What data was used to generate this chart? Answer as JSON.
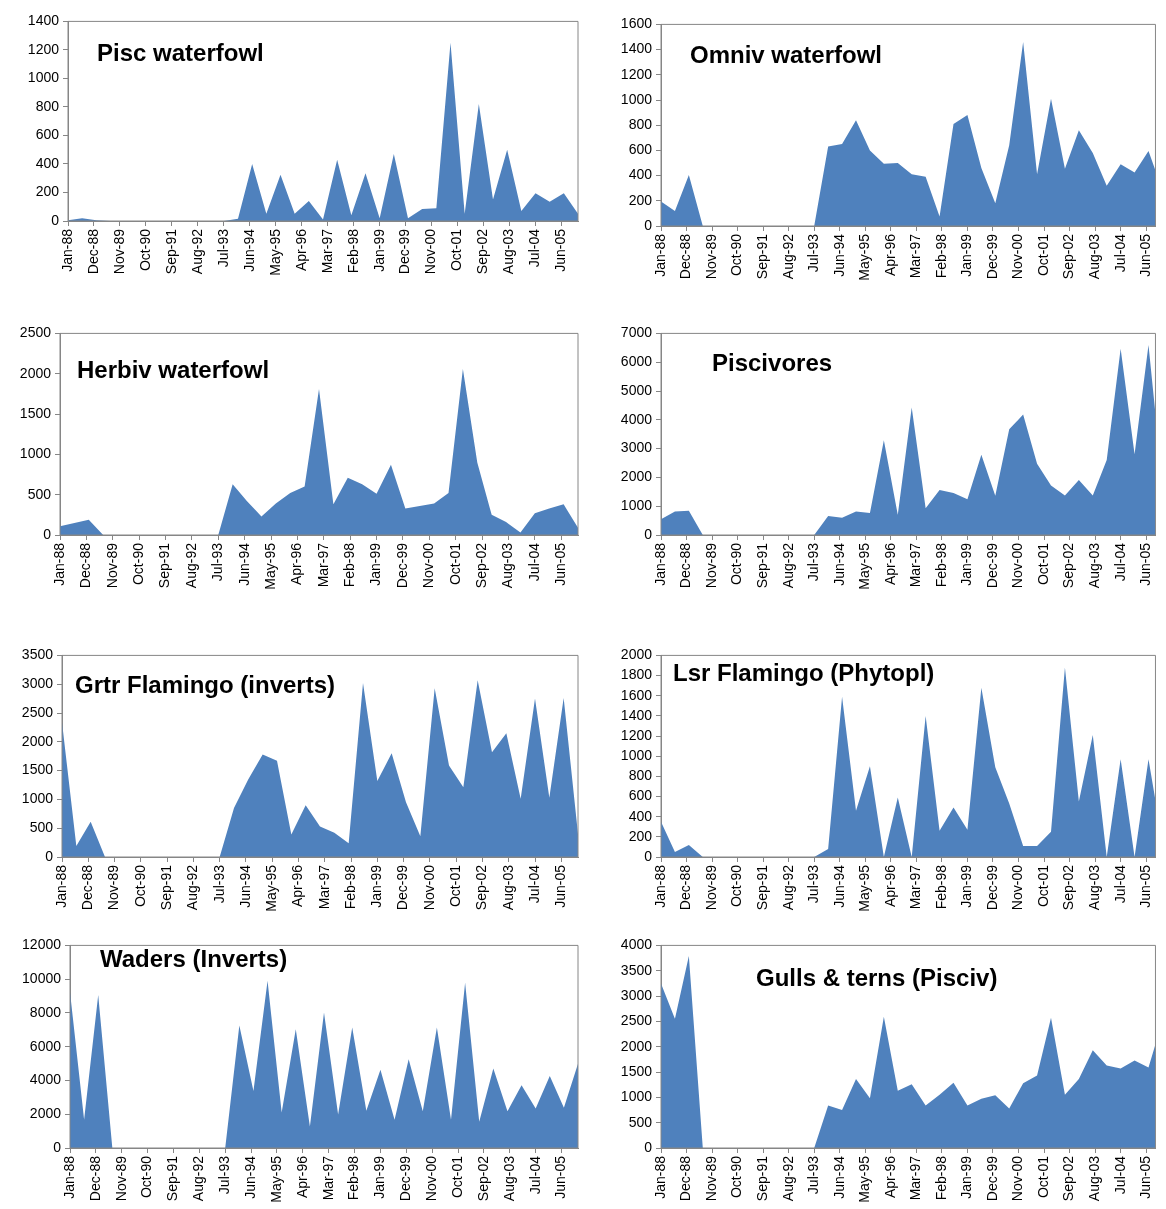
{
  "chart_data": [
    {
      "type": "area",
      "title": "Pisc waterfowl",
      "color": "#4f81bd",
      "x": [
        "1988-01",
        "1988-07",
        "1989-01",
        "1989-07",
        "1990-01",
        "1990-07",
        "1991-01",
        "1991-07",
        "1992-01",
        "1992-07",
        "1993-01",
        "1993-07",
        "1994-01",
        "1994-07",
        "1995-01",
        "1995-07",
        "1996-01",
        "1996-07",
        "1997-01",
        "1997-07",
        "1998-01",
        "1998-07",
        "1999-01",
        "1999-07",
        "2000-01",
        "2000-07",
        "2001-01",
        "2001-07",
        "2002-01",
        "2002-07",
        "2003-01",
        "2003-07",
        "2004-01",
        "2004-07",
        "2005-01",
        "2005-07",
        "2006-01"
      ],
      "values": [
        5,
        20,
        5,
        0,
        0,
        0,
        0,
        0,
        0,
        0,
        0,
        0,
        15,
        400,
        50,
        325,
        50,
        140,
        10,
        430,
        40,
        335,
        20,
        470,
        20,
        85,
        90,
        1250,
        50,
        820,
        150,
        500,
        70,
        195,
        135,
        195,
        50
      ],
      "xlim": [
        "1988-01",
        "2006-01"
      ],
      "xticks": [
        {
          "value": "1988-01",
          "label": "Jan-88"
        },
        {
          "value": "1988-12",
          "label": "Dec-88"
        },
        {
          "value": "1989-11",
          "label": "Nov-89"
        },
        {
          "value": "1990-10",
          "label": "Oct-90"
        },
        {
          "value": "1991-09",
          "label": "Sep-91"
        },
        {
          "value": "1992-08",
          "label": "Aug-92"
        },
        {
          "value": "1993-07",
          "label": "Jul-93"
        },
        {
          "value": "1994-06",
          "label": "Jun-94"
        },
        {
          "value": "1995-05",
          "label": "May-95"
        },
        {
          "value": "1996-04",
          "label": "Apr-96"
        },
        {
          "value": "1997-03",
          "label": "Mar-97"
        },
        {
          "value": "1998-02",
          "label": "Feb-98"
        },
        {
          "value": "1999-01",
          "label": "Jan-99"
        },
        {
          "value": "1999-12",
          "label": "Dec-99"
        },
        {
          "value": "2000-11",
          "label": "Nov-00"
        },
        {
          "value": "2001-10",
          "label": "Oct-01"
        },
        {
          "value": "2002-09",
          "label": "Sep-02"
        },
        {
          "value": "2003-08",
          "label": "Aug-03"
        },
        {
          "value": "2004-07",
          "label": "Jul-04"
        },
        {
          "value": "2005-06",
          "label": "Jun-05"
        }
      ],
      "ylim": [
        0,
        1400
      ],
      "yticks": [
        0,
        200,
        400,
        600,
        800,
        1000,
        1200,
        1400
      ]
    },
    {
      "type": "area",
      "title": "Omniv waterfowl",
      "color": "#4f81bd",
      "x": [
        "1988-01",
        "1988-07",
        "1989-01",
        "1989-07",
        "1990-01",
        "1990-07",
        "1991-01",
        "1991-07",
        "1992-01",
        "1992-07",
        "1993-01",
        "1993-07",
        "1994-01",
        "1994-07",
        "1995-01",
        "1995-07",
        "1996-01",
        "1996-07",
        "1997-01",
        "1997-07",
        "1998-01",
        "1998-07",
        "1999-01",
        "1999-07",
        "2000-01",
        "2000-07",
        "2001-01",
        "2001-07",
        "2002-01",
        "2002-07",
        "2003-01",
        "2003-07",
        "2004-01",
        "2004-07",
        "2005-01",
        "2005-07",
        "2005-10"
      ],
      "values": [
        195,
        120,
        405,
        0,
        0,
        0,
        0,
        0,
        0,
        0,
        0,
        0,
        630,
        650,
        840,
        600,
        495,
        500,
        410,
        390,
        75,
        810,
        880,
        460,
        180,
        640,
        1460,
        410,
        1010,
        455,
        760,
        580,
        320,
        490,
        425,
        595,
        440
      ],
      "xlim": [
        "1988-01",
        "2005-10"
      ],
      "xticks": [
        {
          "value": "1988-01",
          "label": "Jan-88"
        },
        {
          "value": "1988-12",
          "label": "Dec-88"
        },
        {
          "value": "1989-11",
          "label": "Nov-89"
        },
        {
          "value": "1990-10",
          "label": "Oct-90"
        },
        {
          "value": "1991-09",
          "label": "Sep-91"
        },
        {
          "value": "1992-08",
          "label": "Aug-92"
        },
        {
          "value": "1993-07",
          "label": "Jul-93"
        },
        {
          "value": "1994-06",
          "label": "Jun-94"
        },
        {
          "value": "1995-05",
          "label": "May-95"
        },
        {
          "value": "1996-04",
          "label": "Apr-96"
        },
        {
          "value": "1997-03",
          "label": "Mar-97"
        },
        {
          "value": "1998-02",
          "label": "Feb-98"
        },
        {
          "value": "1999-01",
          "label": "Jan-99"
        },
        {
          "value": "1999-12",
          "label": "Dec-99"
        },
        {
          "value": "2000-11",
          "label": "Nov-00"
        },
        {
          "value": "2001-10",
          "label": "Oct-01"
        },
        {
          "value": "2002-09",
          "label": "Sep-02"
        },
        {
          "value": "2003-08",
          "label": "Aug-03"
        },
        {
          "value": "2004-07",
          "label": "Jul-04"
        },
        {
          "value": "2005-06",
          "label": "Jun-05"
        }
      ],
      "ylim": [
        0,
        1600
      ],
      "yticks": [
        0,
        200,
        400,
        600,
        800,
        1000,
        1200,
        1400,
        1600
      ]
    },
    {
      "type": "area",
      "title": "Herbiv waterfowl",
      "color": "#4f81bd",
      "x": [
        "1988-01",
        "1988-07",
        "1989-01",
        "1989-07",
        "1990-01",
        "1990-07",
        "1991-01",
        "1991-07",
        "1992-01",
        "1992-07",
        "1993-01",
        "1993-07",
        "1994-01",
        "1994-07",
        "1995-01",
        "1995-07",
        "1996-01",
        "1996-07",
        "1997-01",
        "1997-07",
        "1998-01",
        "1998-07",
        "1999-01",
        "1999-07",
        "2000-01",
        "2000-07",
        "2001-01",
        "2001-07",
        "2002-01",
        "2002-07",
        "2003-01",
        "2003-07",
        "2004-01",
        "2004-07",
        "2005-01",
        "2005-07",
        "2006-01"
      ],
      "values": [
        110,
        150,
        190,
        0,
        0,
        0,
        0,
        0,
        0,
        0,
        0,
        0,
        630,
        420,
        230,
        390,
        520,
        600,
        1810,
        380,
        710,
        630,
        510,
        870,
        330,
        360,
        390,
        520,
        2060,
        900,
        250,
        160,
        30,
        270,
        330,
        380,
        90
      ],
      "xlim": [
        "1988-01",
        "2006-01"
      ],
      "xticks": [
        {
          "value": "1988-01",
          "label": "Jan-88"
        },
        {
          "value": "1988-12",
          "label": "Dec-88"
        },
        {
          "value": "1989-11",
          "label": "Nov-89"
        },
        {
          "value": "1990-10",
          "label": "Oct-90"
        },
        {
          "value": "1991-09",
          "label": "Sep-91"
        },
        {
          "value": "1992-08",
          "label": "Aug-92"
        },
        {
          "value": "1993-07",
          "label": "Jul-93"
        },
        {
          "value": "1994-06",
          "label": "Jun-94"
        },
        {
          "value": "1995-05",
          "label": "May-95"
        },
        {
          "value": "1996-04",
          "label": "Apr-96"
        },
        {
          "value": "1997-03",
          "label": "Mar-97"
        },
        {
          "value": "1998-02",
          "label": "Feb-98"
        },
        {
          "value": "1999-01",
          "label": "Jan-99"
        },
        {
          "value": "1999-12",
          "label": "Dec-99"
        },
        {
          "value": "2000-11",
          "label": "Nov-00"
        },
        {
          "value": "2001-10",
          "label": "Oct-01"
        },
        {
          "value": "2002-09",
          "label": "Sep-02"
        },
        {
          "value": "2003-08",
          "label": "Aug-03"
        },
        {
          "value": "2004-07",
          "label": "Jul-04"
        },
        {
          "value": "2005-06",
          "label": "Jun-05"
        }
      ],
      "ylim": [
        0,
        2500
      ],
      "yticks": [
        0,
        500,
        1000,
        1500,
        2000,
        2500
      ]
    },
    {
      "type": "area",
      "title": "Piscivores",
      "color": "#4f81bd",
      "x": [
        "1988-01",
        "1988-07",
        "1989-01",
        "1989-07",
        "1990-01",
        "1990-07",
        "1991-01",
        "1991-07",
        "1992-01",
        "1992-07",
        "1993-01",
        "1993-07",
        "1994-01",
        "1994-07",
        "1995-01",
        "1995-07",
        "1996-01",
        "1996-07",
        "1997-01",
        "1997-07",
        "1998-01",
        "1998-07",
        "1999-01",
        "1999-07",
        "2000-01",
        "2000-07",
        "2001-01",
        "2001-07",
        "2002-01",
        "2002-07",
        "2003-01",
        "2003-07",
        "2004-01",
        "2004-07",
        "2005-01",
        "2005-07",
        "2005-10"
      ],
      "values": [
        550,
        820,
        840,
        0,
        0,
        0,
        0,
        0,
        0,
        0,
        0,
        0,
        660,
        600,
        820,
        760,
        3290,
        700,
        4430,
        930,
        1560,
        1460,
        1240,
        2790,
        1360,
        3670,
        4180,
        2470,
        1720,
        1370,
        1910,
        1370,
        2600,
        6470,
        2800,
        6600,
        4200
      ],
      "xlim": [
        "1988-01",
        "2005-10"
      ],
      "xticks": [
        {
          "value": "1988-01",
          "label": "Jan-88"
        },
        {
          "value": "1988-12",
          "label": "Dec-88"
        },
        {
          "value": "1989-11",
          "label": "Nov-89"
        },
        {
          "value": "1990-10",
          "label": "Oct-90"
        },
        {
          "value": "1991-09",
          "label": "Sep-91"
        },
        {
          "value": "1992-08",
          "label": "Aug-92"
        },
        {
          "value": "1993-07",
          "label": "Jul-93"
        },
        {
          "value": "1994-06",
          "label": "Jun-94"
        },
        {
          "value": "1995-05",
          "label": "May-95"
        },
        {
          "value": "1996-04",
          "label": "Apr-96"
        },
        {
          "value": "1997-03",
          "label": "Mar-97"
        },
        {
          "value": "1998-02",
          "label": "Feb-98"
        },
        {
          "value": "1999-01",
          "label": "Jan-99"
        },
        {
          "value": "1999-12",
          "label": "Dec-99"
        },
        {
          "value": "2000-11",
          "label": "Nov-00"
        },
        {
          "value": "2001-10",
          "label": "Oct-01"
        },
        {
          "value": "2002-09",
          "label": "Sep-02"
        },
        {
          "value": "2003-08",
          "label": "Aug-03"
        },
        {
          "value": "2004-07",
          "label": "Jul-04"
        },
        {
          "value": "2005-06",
          "label": "Jun-05"
        }
      ],
      "ylim": [
        0,
        7000
      ],
      "yticks": [
        0,
        1000,
        2000,
        3000,
        4000,
        5000,
        6000,
        7000
      ]
    },
    {
      "type": "area",
      "title": "Grtr Flamingo (inverts)",
      "color": "#4f81bd",
      "x": [
        "1988-01",
        "1988-07",
        "1989-01",
        "1989-07",
        "1990-01",
        "1990-07",
        "1991-01",
        "1991-07",
        "1992-01",
        "1992-07",
        "1993-01",
        "1993-07",
        "1994-01",
        "1994-07",
        "1995-01",
        "1995-07",
        "1996-01",
        "1996-07",
        "1997-01",
        "1997-07",
        "1998-01",
        "1998-07",
        "1999-01",
        "1999-07",
        "2000-01",
        "2000-07",
        "2001-01",
        "2001-07",
        "2002-01",
        "2002-07",
        "2003-01",
        "2003-07",
        "2004-01",
        "2004-07",
        "2005-01",
        "2005-07",
        "2006-01"
      ],
      "values": [
        2340,
        190,
        610,
        0,
        0,
        0,
        0,
        0,
        0,
        0,
        0,
        0,
        850,
        1350,
        1780,
        1670,
        390,
        900,
        530,
        420,
        240,
        3020,
        1320,
        1800,
        950,
        360,
        2930,
        1590,
        1210,
        3070,
        1820,
        2150,
        1010,
        2750,
        1030,
        2760,
        400
      ],
      "xlim": [
        "1988-01",
        "2006-01"
      ],
      "xticks": [
        {
          "value": "1988-01",
          "label": "Jan-88"
        },
        {
          "value": "1988-12",
          "label": "Dec-88"
        },
        {
          "value": "1989-11",
          "label": "Nov-89"
        },
        {
          "value": "1990-10",
          "label": "Oct-90"
        },
        {
          "value": "1991-09",
          "label": "Sep-91"
        },
        {
          "value": "1992-08",
          "label": "Aug-92"
        },
        {
          "value": "1993-07",
          "label": "Jul-93"
        },
        {
          "value": "1994-06",
          "label": "Jun-94"
        },
        {
          "value": "1995-05",
          "label": "May-95"
        },
        {
          "value": "1996-04",
          "label": "Apr-96"
        },
        {
          "value": "1997-03",
          "label": "Mar-97"
        },
        {
          "value": "1998-02",
          "label": "Feb-98"
        },
        {
          "value": "1999-01",
          "label": "Jan-99"
        },
        {
          "value": "1999-12",
          "label": "Dec-99"
        },
        {
          "value": "2000-11",
          "label": "Nov-00"
        },
        {
          "value": "2001-10",
          "label": "Oct-01"
        },
        {
          "value": "2002-09",
          "label": "Sep-02"
        },
        {
          "value": "2003-08",
          "label": "Aug-03"
        },
        {
          "value": "2004-07",
          "label": "Jul-04"
        },
        {
          "value": "2005-06",
          "label": "Jun-05"
        }
      ],
      "ylim": [
        0,
        3500
      ],
      "yticks": [
        0,
        500,
        1000,
        1500,
        2000,
        2500,
        3000,
        3500
      ]
    },
    {
      "type": "area",
      "title": "Lsr Flamingo (Phytopl)",
      "color": "#4f81bd",
      "x": [
        "1988-01",
        "1988-07",
        "1989-01",
        "1989-07",
        "1990-01",
        "1990-07",
        "1991-01",
        "1991-07",
        "1992-01",
        "1992-07",
        "1993-01",
        "1993-07",
        "1994-01",
        "1994-07",
        "1995-01",
        "1995-07",
        "1996-01",
        "1996-07",
        "1997-01",
        "1997-07",
        "1998-01",
        "1998-07",
        "1999-01",
        "1999-07",
        "2000-01",
        "2000-07",
        "2001-01",
        "2001-07",
        "2002-01",
        "2002-07",
        "2003-01",
        "2003-07",
        "2004-01",
        "2004-07",
        "2005-01",
        "2005-07",
        "2005-10"
      ],
      "values": [
        350,
        50,
        120,
        0,
        0,
        0,
        0,
        0,
        0,
        0,
        0,
        0,
        80,
        1590,
        460,
        900,
        0,
        590,
        0,
        1400,
        260,
        490,
        270,
        1680,
        890,
        530,
        110,
        110,
        250,
        1880,
        550,
        1210,
        0,
        970,
        0,
        970,
        560
      ],
      "xlim": [
        "1988-01",
        "2005-10"
      ],
      "xticks": [
        {
          "value": "1988-01",
          "label": "Jan-88"
        },
        {
          "value": "1988-12",
          "label": "Dec-88"
        },
        {
          "value": "1989-11",
          "label": "Nov-89"
        },
        {
          "value": "1990-10",
          "label": "Oct-90"
        },
        {
          "value": "1991-09",
          "label": "Sep-91"
        },
        {
          "value": "1992-08",
          "label": "Aug-92"
        },
        {
          "value": "1993-07",
          "label": "Jul-93"
        },
        {
          "value": "1994-06",
          "label": "Jun-94"
        },
        {
          "value": "1995-05",
          "label": "May-95"
        },
        {
          "value": "1996-04",
          "label": "Apr-96"
        },
        {
          "value": "1997-03",
          "label": "Mar-97"
        },
        {
          "value": "1998-02",
          "label": "Feb-98"
        },
        {
          "value": "1999-01",
          "label": "Jan-99"
        },
        {
          "value": "1999-12",
          "label": "Dec-99"
        },
        {
          "value": "2000-11",
          "label": "Nov-00"
        },
        {
          "value": "2001-10",
          "label": "Oct-01"
        },
        {
          "value": "2002-09",
          "label": "Sep-02"
        },
        {
          "value": "2003-08",
          "label": "Aug-03"
        },
        {
          "value": "2004-07",
          "label": "Jul-04"
        },
        {
          "value": "2005-06",
          "label": "Jun-05"
        }
      ],
      "ylim": [
        0,
        2000
      ],
      "yticks": [
        0,
        200,
        400,
        600,
        800,
        1000,
        1200,
        1400,
        1600,
        1800,
        2000
      ]
    },
    {
      "type": "area",
      "title": "Waders (Inverts)",
      "color": "#4f81bd",
      "x": [
        "1988-01",
        "1988-07",
        "1989-01",
        "1989-07",
        "1990-01",
        "1990-07",
        "1991-01",
        "1991-07",
        "1992-01",
        "1992-07",
        "1993-01",
        "1993-07",
        "1994-01",
        "1994-07",
        "1995-01",
        "1995-07",
        "1996-01",
        "1996-07",
        "1997-01",
        "1997-07",
        "1998-01",
        "1998-07",
        "1999-01",
        "1999-07",
        "2000-01",
        "2000-07",
        "2001-01",
        "2001-07",
        "2002-01",
        "2002-07",
        "2003-01",
        "2003-07",
        "2004-01",
        "2004-07",
        "2005-01",
        "2005-07",
        "2006-01"
      ],
      "values": [
        9240,
        1680,
        9060,
        0,
        0,
        0,
        0,
        0,
        0,
        0,
        0,
        0,
        7250,
        3380,
        9900,
        2100,
        7030,
        1280,
        8020,
        1990,
        7140,
        2210,
        4640,
        1680,
        5260,
        2170,
        7140,
        1680,
        9790,
        1550,
        4710,
        2170,
        3710,
        2340,
        4270,
        2390,
        4990
      ],
      "xlim": [
        "1988-01",
        "2006-01"
      ],
      "xticks": [
        {
          "value": "1988-01",
          "label": "Jan-88"
        },
        {
          "value": "1988-12",
          "label": "Dec-88"
        },
        {
          "value": "1989-11",
          "label": "Nov-89"
        },
        {
          "value": "1990-10",
          "label": "Oct-90"
        },
        {
          "value": "1991-09",
          "label": "Sep-91"
        },
        {
          "value": "1992-08",
          "label": "Aug-92"
        },
        {
          "value": "1993-07",
          "label": "Jul-93"
        },
        {
          "value": "1994-06",
          "label": "Jun-94"
        },
        {
          "value": "1995-05",
          "label": "May-95"
        },
        {
          "value": "1996-04",
          "label": "Apr-96"
        },
        {
          "value": "1997-03",
          "label": "Mar-97"
        },
        {
          "value": "1998-02",
          "label": "Feb-98"
        },
        {
          "value": "1999-01",
          "label": "Jan-99"
        },
        {
          "value": "1999-12",
          "label": "Dec-99"
        },
        {
          "value": "2000-11",
          "label": "Nov-00"
        },
        {
          "value": "2001-10",
          "label": "Oct-01"
        },
        {
          "value": "2002-09",
          "label": "Sep-02"
        },
        {
          "value": "2003-08",
          "label": "Aug-03"
        },
        {
          "value": "2004-07",
          "label": "Jul-04"
        },
        {
          "value": "2005-06",
          "label": "Jun-05"
        }
      ],
      "ylim": [
        0,
        12000
      ],
      "yticks": [
        0,
        2000,
        4000,
        6000,
        8000,
        10000,
        12000
      ]
    },
    {
      "type": "area",
      "title": "Gulls & terns (Pisciv)",
      "color": "#4f81bd",
      "x": [
        "1988-01",
        "1988-07",
        "1989-01",
        "1989-07",
        "1990-01",
        "1990-07",
        "1991-01",
        "1991-07",
        "1992-01",
        "1992-07",
        "1993-01",
        "1993-07",
        "1994-01",
        "1994-07",
        "1995-01",
        "1995-07",
        "1996-01",
        "1996-07",
        "1997-01",
        "1997-07",
        "1998-01",
        "1998-07",
        "1999-01",
        "1999-07",
        "2000-01",
        "2000-07",
        "2001-01",
        "2001-07",
        "2002-01",
        "2002-07",
        "2003-01",
        "2003-07",
        "2004-01",
        "2004-07",
        "2005-01",
        "2005-07",
        "2005-10"
      ],
      "values": [
        3250,
        2550,
        3790,
        0,
        0,
        0,
        0,
        0,
        0,
        0,
        0,
        0,
        840,
        750,
        1360,
        980,
        2590,
        1130,
        1260,
        840,
        1050,
        1290,
        840,
        970,
        1040,
        780,
        1280,
        1430,
        2570,
        1050,
        1360,
        1930,
        1630,
        1570,
        1730,
        1590,
        2050
      ],
      "xlim": [
        "1988-01",
        "2005-10"
      ],
      "xticks": [
        {
          "value": "1988-01",
          "label": "Jan-88"
        },
        {
          "value": "1988-12",
          "label": "Dec-88"
        },
        {
          "value": "1989-11",
          "label": "Nov-89"
        },
        {
          "value": "1990-10",
          "label": "Oct-90"
        },
        {
          "value": "1991-09",
          "label": "Sep-91"
        },
        {
          "value": "1992-08",
          "label": "Aug-92"
        },
        {
          "value": "1993-07",
          "label": "Jul-93"
        },
        {
          "value": "1994-06",
          "label": "Jun-94"
        },
        {
          "value": "1995-05",
          "label": "May-95"
        },
        {
          "value": "1996-04",
          "label": "Apr-96"
        },
        {
          "value": "1997-03",
          "label": "Mar-97"
        },
        {
          "value": "1998-02",
          "label": "Feb-98"
        },
        {
          "value": "1999-01",
          "label": "Jan-99"
        },
        {
          "value": "1999-12",
          "label": "Dec-99"
        },
        {
          "value": "2000-11",
          "label": "Nov-00"
        },
        {
          "value": "2001-10",
          "label": "Oct-01"
        },
        {
          "value": "2002-09",
          "label": "Sep-02"
        },
        {
          "value": "2003-08",
          "label": "Aug-03"
        },
        {
          "value": "2004-07",
          "label": "Jul-04"
        },
        {
          "value": "2005-06",
          "label": "Jun-05"
        }
      ],
      "ylim": [
        0,
        4000
      ],
      "yticks": [
        0,
        500,
        1000,
        1500,
        2000,
        2500,
        3000,
        3500,
        4000
      ]
    }
  ]
}
